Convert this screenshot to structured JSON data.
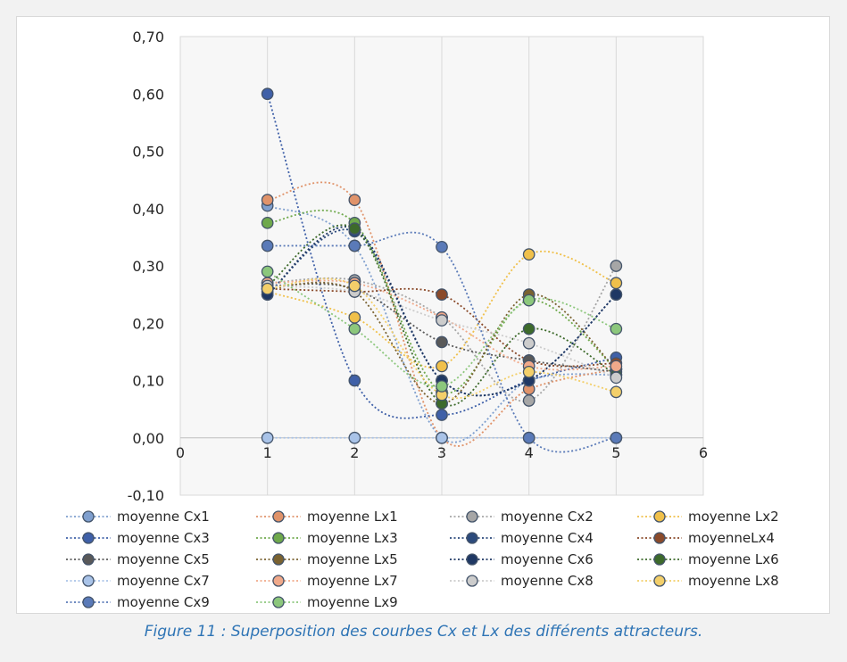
{
  "caption": "Figure 11 : Superposition des courbes Cx et Lx des différents attracteurs.",
  "chart_data": {
    "type": "scatter",
    "smoothed_lines": true,
    "line_style": "dotted",
    "marker": "circle",
    "x_ticks": [
      "0",
      "1",
      "2",
      "3",
      "4",
      "5",
      "6"
    ],
    "y_ticks": [
      "-0,10",
      "0,00",
      "0,10",
      "0,20",
      "0,30",
      "0,40",
      "0,50",
      "0,60",
      "0,70"
    ],
    "xlim": [
      0,
      6
    ],
    "ylim": [
      -0.1,
      0.7
    ],
    "grid": "vertical",
    "legend_position": "bottom",
    "series": [
      {
        "name": "moyenne Cx1",
        "color": "#7f9fce",
        "x": [
          1,
          2,
          3,
          4,
          5
        ],
        "y": [
          0.405,
          0.335,
          0.0,
          0.1,
          0.11
        ]
      },
      {
        "name": "moyenne Lx1",
        "color": "#e0936a",
        "x": [
          1,
          2,
          3,
          4,
          5
        ],
        "y": [
          0.415,
          0.415,
          0.0,
          0.085,
          0.12
        ]
      },
      {
        "name": "moyenne Cx2",
        "color": "#a6a6a6",
        "x": [
          1,
          2,
          3,
          4,
          5
        ],
        "y": [
          0.27,
          0.275,
          0.21,
          0.065,
          0.3
        ]
      },
      {
        "name": "moyenne Lx2",
        "color": "#f0c04a",
        "x": [
          1,
          2,
          3,
          4,
          5
        ],
        "y": [
          0.255,
          0.21,
          0.125,
          0.32,
          0.27
        ]
      },
      {
        "name": "moyenne Cx3",
        "color": "#3f60a8",
        "x": [
          1,
          2,
          3,
          4,
          5
        ],
        "y": [
          0.6,
          0.1,
          0.04,
          0.1,
          0.14
        ]
      },
      {
        "name": "moyenne Lx3",
        "color": "#6fa94c",
        "x": [
          1,
          2,
          3,
          4,
          5
        ],
        "y": [
          0.375,
          0.375,
          0.08,
          0.24,
          0.12
        ]
      },
      {
        "name": "moyenne Cx4",
        "color": "#2c4a7c",
        "x": [
          1,
          2,
          3,
          4,
          5
        ],
        "y": [
          0.25,
          0.36,
          0.1,
          0.1,
          0.25
        ]
      },
      {
        "name": "moyenneLx4",
        "color": "#8a4a2a",
        "x": [
          1,
          2,
          3,
          4,
          5
        ],
        "y": [
          0.26,
          0.255,
          0.25,
          0.135,
          0.13
        ]
      },
      {
        "name": "moyenne Cx5",
        "color": "#595959",
        "x": [
          1,
          2,
          3,
          4,
          5
        ],
        "y": [
          0.265,
          0.26,
          0.167,
          0.135,
          0.115
        ]
      },
      {
        "name": "moyenne Lx5",
        "color": "#7a6230",
        "x": [
          1,
          2,
          3,
          4,
          5
        ],
        "y": [
          0.26,
          0.255,
          0.06,
          0.25,
          0.12
        ]
      },
      {
        "name": "moyenne Cx6",
        "color": "#1f3864",
        "x": [
          1,
          2,
          3,
          4,
          5
        ],
        "y": [
          0.25,
          0.365,
          0.1,
          0.1,
          0.25
        ]
      },
      {
        "name": "moyenne Lx6",
        "color": "#3d6a2b",
        "x": [
          1,
          2,
          3,
          4,
          5
        ],
        "y": [
          0.265,
          0.365,
          0.06,
          0.19,
          0.11
        ]
      },
      {
        "name": "moyenne Cx7",
        "color": "#a9c3e8",
        "x": [
          1,
          2,
          3,
          4,
          5
        ],
        "y": [
          0.0,
          0.0,
          0.0,
          0.0,
          0.0
        ]
      },
      {
        "name": "moyenne Lx7",
        "color": "#f0a98a",
        "x": [
          1,
          2,
          3,
          4,
          5
        ],
        "y": [
          0.27,
          0.27,
          0.21,
          0.125,
          0.125
        ]
      },
      {
        "name": "moyenne Cx8",
        "color": "#cccccc",
        "x": [
          1,
          2,
          3,
          4,
          5
        ],
        "y": [
          0.265,
          0.255,
          0.205,
          0.165,
          0.105
        ]
      },
      {
        "name": "moyenne Lx8",
        "color": "#f3cf6a",
        "x": [
          1,
          2,
          3,
          4,
          5
        ],
        "y": [
          0.26,
          0.265,
          0.075,
          0.115,
          0.08
        ]
      },
      {
        "name": "moyenne Cx9",
        "color": "#5a7ab8",
        "x": [
          1,
          2,
          3,
          4,
          5
        ],
        "y": [
          0.335,
          0.335,
          0.333,
          0.0,
          0.0
        ]
      },
      {
        "name": "moyenne Lx9",
        "color": "#8cc77c",
        "x": [
          1,
          2,
          3,
          4,
          5
        ],
        "y": [
          0.29,
          0.19,
          0.09,
          0.24,
          0.19
        ]
      }
    ]
  }
}
